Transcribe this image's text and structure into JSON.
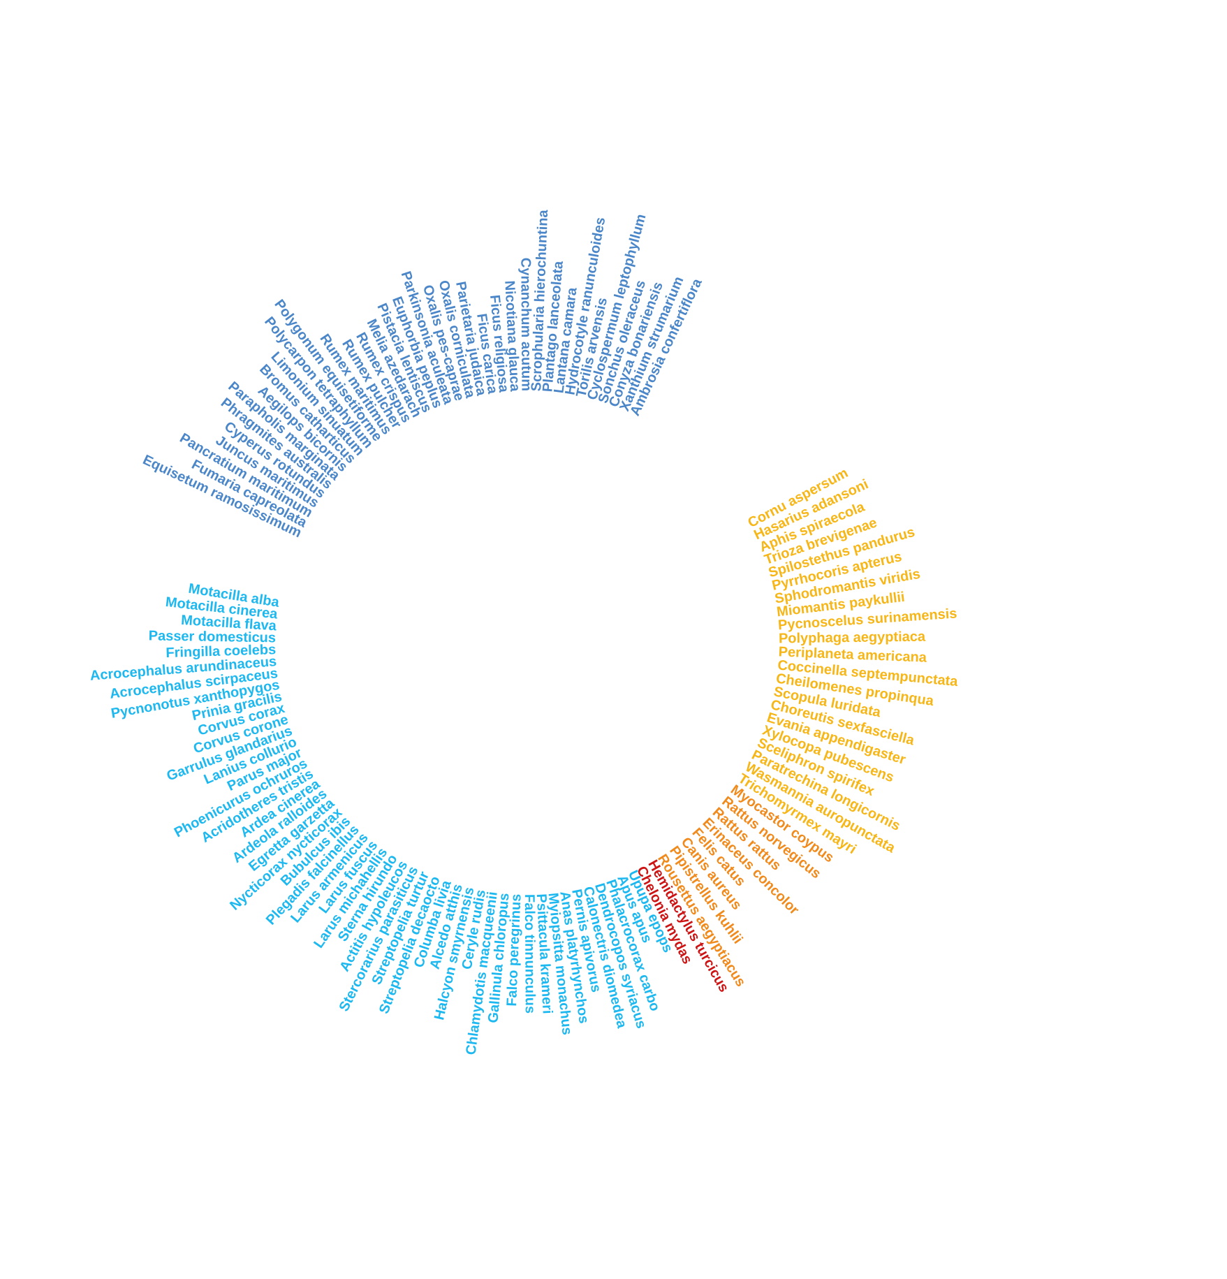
{
  "chart_data": {
    "type": "radial_label_tree",
    "groups": [
      {
        "color": "#4a86c8",
        "labels": [
          "Ambrosia confertiflora",
          "Xanthium strumarium",
          "Conyza bonariensis",
          "Sonchus oleraceus",
          "Cyclospermum leptophyllum",
          "Torilis arvensis",
          "Hydrocotyle ranunculoides",
          "Lantana camara",
          "Plantago lanceolata",
          "Scrophularia hierochuntina",
          "Cynanchum acutum",
          "Nicotiana glauca",
          "Ficus religiosa",
          "Ficus carica",
          "Parietaria judaica",
          "Oxalis corniculata",
          "Oxalis pes-caprae",
          "Parkinsonia aculeata",
          "Euphorbia peplus",
          "Pistacia lentiscus",
          "Melia azedarach",
          "Rumex crispus",
          "Rumex pulcher",
          "Rumex maritimus",
          "Polygonum equisetiforme",
          "Polycarpon tetraphyllum",
          "Limonium sinuatum",
          "Bromus catharticus",
          "Aegilops bicornis",
          "Parapholis marginata",
          "Phragmites australis",
          "Cyperus rotundus",
          "Juncus maritimus",
          "Pancratium maritimum",
          "Fumaria capreolata",
          "Equisetum ramosissimum"
        ]
      },
      {
        "color": "#1cb8ef",
        "labels": [
          "Motacilla alba",
          "Motacilla cinerea",
          "Motacilla flava",
          "Passer domesticus",
          "Fringilla coelebs",
          "Acrocephalus arundinaceus",
          "Acrocephalus scirpaceus",
          "Pycnonotus xanthopygos",
          "Prinia gracilis",
          "Corvus corax",
          "Corvus corone",
          "Garrulus glandarius",
          "Lanius collurio",
          "Parus major",
          "Phoenicurus ochruros",
          "Acridotheres tristis",
          "Ardea cinerea",
          "Ardeola ralloides",
          "Egretta garzetta",
          "Nycticorax nycticorax",
          "Bubulcus ibis",
          "Plegadis falcinellus",
          "Larus armenicus",
          "Larus fuscus",
          "Larus michahellis",
          "Sterna hirundo",
          "Actitis hypoleucos",
          "Stercorarius parasiticus",
          "Streptopelia turtur",
          "Streptopelia decaocto",
          "Columba livia",
          "Alcedo atthis",
          "Halcyon smyrnensis",
          "Ceryle rudis",
          "Chlamydotis macqueenii",
          "Gallinula chloropus",
          "Falco peregrinus",
          "Falco tinnunculus",
          "Psittacula krameri",
          "Myiopsitta monachus",
          "Anas platyrhynchos",
          "Pernis apivorus",
          "Calonectris diomedea",
          "Dendrocopos syriacus",
          "Phalacrocorax carbo",
          "Apus apus",
          "Upupa epops"
        ]
      },
      {
        "color": "#cc1414",
        "labels": [
          "Chelonia mydas",
          "Hemidactylus turcicus"
        ]
      },
      {
        "color": "#f08a1c",
        "labels": [
          "Rousettus aegyptiacus",
          "Pipistrellus kuhlii",
          "Canis aureus",
          "Felis catus",
          "Erinaceus concolor",
          "Rattus rattus",
          "Rattus norvegicus",
          "Myocastor coypus"
        ]
      },
      {
        "color": "#f7b617",
        "labels": [
          "Trichomyrmex mayri",
          "Wasmannia auropunctata",
          "Paratrechina longicornis",
          "Sceliphron spirifex",
          "Xylocopa pubescens",
          "Evania appendigaster",
          "Choreutis sexfasciella",
          "Scopula luridata",
          "Cheilomenes propinqua",
          "Coccinella septempunctata",
          "Periplaneta americana",
          "Polyphaga aegyptiaca",
          "Pycnoscelus surinamensis",
          "Miomantis paykullii",
          "Sphodromantis viridis",
          "Pyrrhocoris apterus",
          "Spilostethus pandurus",
          "Trioza brevigenae",
          "Aphis spiraecola",
          "Hasarius adansoni",
          "Cornu aspersum"
        ]
      }
    ]
  }
}
